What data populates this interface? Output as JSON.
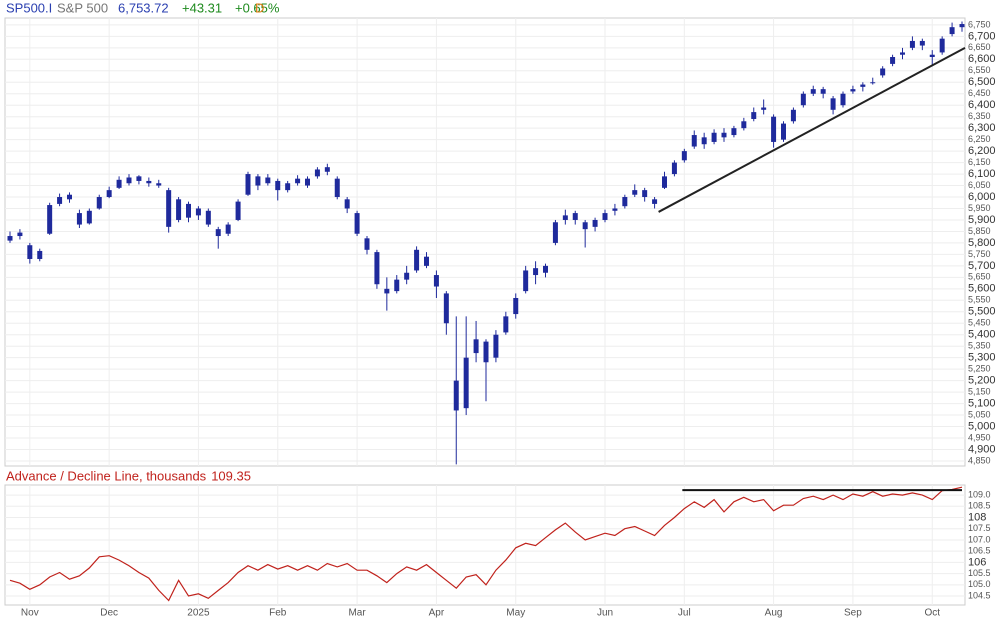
{
  "chart_data": [
    {
      "type": "candlestick",
      "symbol": "SP500.I",
      "name": "S&P 500",
      "last": "6,753.72",
      "change": "+43.31",
      "change_pct": "+0.65%",
      "interval": "D",
      "color": "#1f2a9c",
      "grid": true,
      "trend_line": [
        5935,
        6650
      ],
      "trend_color": "#222222",
      "categories": [
        null,
        null,
        "Nov",
        null,
        null,
        null,
        null,
        null,
        null,
        null,
        "Dec",
        null,
        null,
        null,
        null,
        null,
        null,
        null,
        null,
        "2025",
        null,
        null,
        null,
        null,
        null,
        null,
        null,
        "Feb",
        null,
        null,
        null,
        null,
        null,
        null,
        null,
        "Mar",
        null,
        null,
        null,
        null,
        null,
        null,
        null,
        "Apr",
        null,
        null,
        null,
        null,
        null,
        null,
        null,
        "May",
        null,
        null,
        null,
        null,
        null,
        null,
        null,
        null,
        "Jun",
        null,
        null,
        null,
        null,
        null,
        null,
        null,
        "Jul",
        null,
        null,
        null,
        null,
        null,
        null,
        null,
        null,
        "Aug",
        null,
        null,
        null,
        null,
        null,
        null,
        null,
        "Sep",
        null,
        null,
        null,
        null,
        null,
        null,
        null,
        "Oct",
        null,
        null,
        null
      ],
      "values": [
        [
          5810,
          5850,
          5800,
          5830
        ],
        [
          5830,
          5860,
          5815,
          5845
        ],
        [
          5790,
          5800,
          5710,
          5730
        ],
        [
          5730,
          5775,
          5720,
          5765
        ],
        [
          5840,
          5975,
          5835,
          5965
        ],
        [
          5970,
          6015,
          5960,
          6000
        ],
        [
          6010,
          6020,
          5975,
          5990
        ],
        [
          5930,
          5945,
          5865,
          5880
        ],
        [
          5885,
          5950,
          5880,
          5940
        ],
        [
          5950,
          6010,
          5945,
          6000
        ],
        [
          6000,
          6045,
          5995,
          6030
        ],
        [
          6040,
          6090,
          6035,
          6075
        ],
        [
          6060,
          6100,
          6050,
          6085
        ],
        [
          6090,
          6095,
          6055,
          6070
        ],
        [
          6070,
          6085,
          6045,
          6060
        ],
        [
          6060,
          6075,
          6040,
          6050
        ],
        [
          6030,
          6040,
          5845,
          5870
        ],
        [
          5900,
          6000,
          5890,
          5990
        ],
        [
          5970,
          5980,
          5890,
          5910
        ],
        [
          5920,
          5960,
          5900,
          5950
        ],
        [
          5940,
          5950,
          5870,
          5880
        ],
        [
          5860,
          5870,
          5775,
          5830
        ],
        [
          5840,
          5890,
          5830,
          5880
        ],
        [
          5900,
          5990,
          5895,
          5980
        ],
        [
          6010,
          6110,
          6005,
          6100
        ],
        [
          6090,
          6100,
          6030,
          6050
        ],
        [
          6060,
          6100,
          6050,
          6085
        ],
        [
          6070,
          6080,
          5985,
          6030
        ],
        [
          6030,
          6070,
          6020,
          6060
        ],
        [
          6060,
          6095,
          6050,
          6080
        ],
        [
          6080,
          6090,
          6040,
          6050
        ],
        [
          6090,
          6130,
          6080,
          6120
        ],
        [
          6130,
          6145,
          6095,
          6110
        ],
        [
          6080,
          6090,
          5990,
          6000
        ],
        [
          5990,
          6000,
          5930,
          5950
        ],
        [
          5930,
          5940,
          5830,
          5840
        ],
        [
          5820,
          5830,
          5750,
          5770
        ],
        [
          5760,
          5770,
          5600,
          5620
        ],
        [
          5600,
          5650,
          5505,
          5580
        ],
        [
          5590,
          5660,
          5580,
          5640
        ],
        [
          5640,
          5700,
          5620,
          5670
        ],
        [
          5680,
          5785,
          5670,
          5770
        ],
        [
          5740,
          5760,
          5690,
          5700
        ],
        [
          5660,
          5680,
          5560,
          5610
        ],
        [
          5580,
          5590,
          5400,
          5450
        ],
        [
          5200,
          5480,
          4835,
          5070
        ],
        [
          5080,
          5480,
          5050,
          5300
        ],
        [
          5320,
          5460,
          5280,
          5380
        ],
        [
          5370,
          5380,
          5110,
          5280
        ],
        [
          5300,
          5420,
          5280,
          5400
        ],
        [
          5410,
          5500,
          5400,
          5480
        ],
        [
          5490,
          5580,
          5470,
          5560
        ],
        [
          5590,
          5700,
          5580,
          5680
        ],
        [
          5690,
          5720,
          5620,
          5660
        ],
        [
          5670,
          5710,
          5650,
          5700
        ],
        [
          5800,
          5900,
          5790,
          5890
        ],
        [
          5900,
          5945,
          5880,
          5920
        ],
        [
          5930,
          5940,
          5880,
          5900
        ],
        [
          5890,
          5900,
          5780,
          5860
        ],
        [
          5870,
          5910,
          5850,
          5900
        ],
        [
          5900,
          5945,
          5890,
          5930
        ],
        [
          5940,
          5970,
          5920,
          5950
        ],
        [
          5960,
          6010,
          5950,
          6000
        ],
        [
          6010,
          6055,
          6000,
          6030
        ],
        [
          6030,
          6040,
          5980,
          6000
        ],
        [
          5990,
          6000,
          5950,
          5970
        ],
        [
          6040,
          6110,
          6035,
          6090
        ],
        [
          6100,
          6160,
          6090,
          6150
        ],
        [
          6160,
          6210,
          6150,
          6200
        ],
        [
          6220,
          6290,
          6210,
          6270
        ],
        [
          6260,
          6280,
          6210,
          6230
        ],
        [
          6240,
          6295,
          6230,
          6280
        ],
        [
          6280,
          6300,
          6240,
          6260
        ],
        [
          6270,
          6310,
          6260,
          6300
        ],
        [
          6300,
          6345,
          6290,
          6330
        ],
        [
          6340,
          6390,
          6330,
          6370
        ],
        [
          6380,
          6425,
          6360,
          6390
        ],
        [
          6350,
          6360,
          6215,
          6240
        ],
        [
          6250,
          6330,
          6240,
          6320
        ],
        [
          6330,
          6390,
          6320,
          6380
        ],
        [
          6400,
          6460,
          6390,
          6450
        ],
        [
          6450,
          6485,
          6440,
          6470
        ],
        [
          6470,
          6480,
          6430,
          6450
        ],
        [
          6430,
          6440,
          6360,
          6380
        ],
        [
          6400,
          6460,
          6390,
          6450
        ],
        [
          6460,
          6485,
          6450,
          6470
        ],
        [
          6480,
          6500,
          6460,
          6490
        ],
        [
          6500,
          6520,
          6490,
          6500
        ],
        [
          6530,
          6570,
          6520,
          6560
        ],
        [
          6580,
          6620,
          6570,
          6610
        ],
        [
          6620,
          6650,
          6600,
          6630
        ],
        [
          6650,
          6700,
          6640,
          6680
        ],
        [
          6680,
          6690,
          6640,
          6660
        ],
        [
          6620,
          6640,
          6570,
          6610
        ],
        [
          6630,
          6700,
          6620,
          6690
        ],
        [
          6710,
          6760,
          6700,
          6740
        ],
        [
          6740,
          6765,
          6720,
          6753.72
        ]
      ],
      "ylim": [
        4828,
        6780
      ],
      "yticks": [
        {
          "value": 4850,
          "label": "4,850"
        },
        {
          "value": 4900,
          "label": "4,900"
        },
        {
          "value": 4950,
          "label": "4,950"
        },
        {
          "value": 5000,
          "label": "5,000"
        },
        {
          "value": 5050,
          "label": "5,050"
        },
        {
          "value": 5100,
          "label": "5,100"
        },
        {
          "value": 5150,
          "label": "5,150"
        },
        {
          "value": 5200,
          "label": "5,200"
        },
        {
          "value": 5250,
          "label": "5,250"
        },
        {
          "value": 5300,
          "label": "5,300"
        },
        {
          "value": 5350,
          "label": "5,350"
        },
        {
          "value": 5400,
          "label": "5,400"
        },
        {
          "value": 5450,
          "label": "5,450"
        },
        {
          "value": 5500,
          "label": "5,500"
        },
        {
          "value": 5550,
          "label": "5,550"
        },
        {
          "value": 5600,
          "label": "5,600"
        },
        {
          "value": 5650,
          "label": "5,650"
        },
        {
          "value": 5700,
          "label": "5,700"
        },
        {
          "value": 5750,
          "label": "5,750"
        },
        {
          "value": 5800,
          "label": "5,800"
        },
        {
          "value": 5850,
          "label": "5,850"
        },
        {
          "value": 5900,
          "label": "5,900"
        },
        {
          "value": 5950,
          "label": "5,950"
        },
        {
          "value": 6000,
          "label": "6,000"
        },
        {
          "value": 6050,
          "label": "6,050"
        },
        {
          "value": 6100,
          "label": "6,100"
        },
        {
          "value": 6150,
          "label": "6,150"
        },
        {
          "value": 6200,
          "label": "6,200"
        },
        {
          "value": 6250,
          "label": "6,250"
        },
        {
          "value": 6300,
          "label": "6,300"
        },
        {
          "value": 6350,
          "label": "6,350"
        },
        {
          "value": 6400,
          "label": "6,400"
        },
        {
          "value": 6450,
          "label": "6,450"
        },
        {
          "value": 6500,
          "label": "6,500"
        },
        {
          "value": 6550,
          "label": "6,550"
        },
        {
          "value": 6600,
          "label": "6,600"
        },
        {
          "value": 6650,
          "label": "6,650"
        },
        {
          "value": 6700,
          "label": "6,700"
        },
        {
          "value": 6750,
          "label": "6,750"
        }
      ]
    },
    {
      "type": "line",
      "title": "Advance / Decline Line, thousands",
      "last_value": 109.35,
      "color": "#c0221c",
      "grid": true,
      "trend_line": 109.22,
      "trend_color": "#111111",
      "values": [
        105.2,
        105.07,
        104.8,
        105.0,
        105.35,
        105.55,
        105.25,
        105.4,
        105.75,
        106.25,
        106.3,
        106.1,
        105.85,
        105.55,
        105.3,
        104.75,
        104.3,
        105.2,
        104.5,
        104.6,
        104.4,
        104.75,
        105.1,
        105.55,
        105.85,
        105.65,
        105.9,
        105.7,
        105.85,
        105.65,
        105.85,
        105.65,
        105.95,
        105.8,
        105.95,
        105.65,
        105.65,
        105.4,
        105.1,
        105.5,
        105.8,
        105.65,
        105.9,
        105.55,
        105.2,
        104.85,
        105.35,
        105.45,
        105.0,
        105.65,
        106.1,
        106.65,
        106.85,
        106.75,
        107.1,
        107.45,
        107.75,
        107.35,
        107.0,
        107.15,
        107.3,
        107.2,
        107.5,
        107.6,
        107.4,
        107.2,
        107.65,
        108.0,
        108.4,
        108.7,
        108.45,
        108.8,
        108.25,
        108.7,
        108.9,
        108.7,
        108.8,
        108.3,
        108.55,
        108.55,
        108.85,
        108.95,
        108.8,
        109.0,
        108.8,
        109.05,
        108.95,
        109.15,
        108.95,
        109.05,
        109.0,
        109.1,
        109.0,
        108.8,
        109.2,
        109.25,
        109.35
      ],
      "ylim": [
        104.1,
        109.45
      ],
      "yticks": [
        104.5,
        {
          "value": 105,
          "label": "105.0"
        },
        105.5,
        106,
        106.5,
        {
          "value": 107,
          "label": "107.0"
        },
        107.5,
        108,
        108.5,
        {
          "value": 109,
          "label": "109.0"
        }
      ]
    }
  ]
}
